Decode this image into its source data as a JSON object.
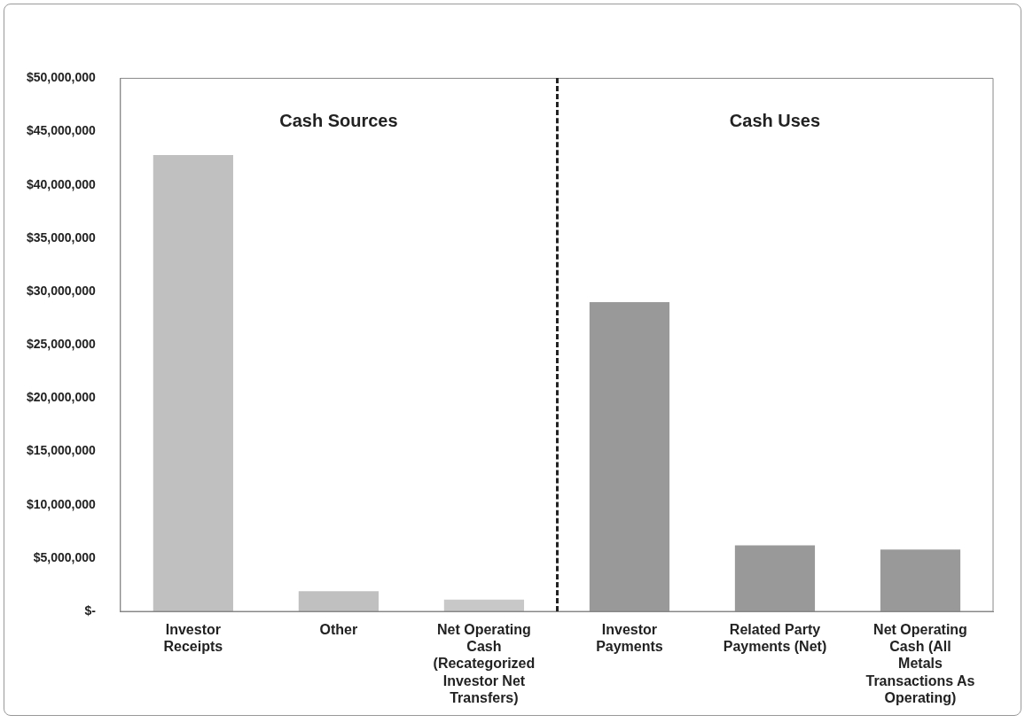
{
  "chart_data": {
    "type": "bar",
    "categories": [
      "Investor Receipts",
      "Other",
      "Net Operating Cash (Recategorized Investor Net Transfers)",
      "Investor Payments",
      "Related Party Payments (Net)",
      "Net Operating Cash (All Metals Transactions As Operating)"
    ],
    "values": [
      42800000,
      1900000,
      1100000,
      29000000,
      6200000,
      5800000
    ],
    "colors": [
      "#c0c0c0",
      "#c0c0c0",
      "#c8c8c8",
      "#999999",
      "#999999",
      "#999999"
    ],
    "ylim": [
      0,
      50000000
    ],
    "yticks": [
      {
        "value": 0,
        "label": "$-"
      },
      {
        "value": 5000000,
        "label": "$5,000,000"
      },
      {
        "value": 10000000,
        "label": "$10,000,000"
      },
      {
        "value": 15000000,
        "label": "$15,000,000"
      },
      {
        "value": 20000000,
        "label": "$20,000,000"
      },
      {
        "value": 25000000,
        "label": "$25,000,000"
      },
      {
        "value": 30000000,
        "label": "$30,000,000"
      },
      {
        "value": 35000000,
        "label": "$35,000,000"
      },
      {
        "value": 40000000,
        "label": "$40,000,000"
      },
      {
        "value": 45000000,
        "label": "$45,000,000"
      },
      {
        "value": 50000000,
        "label": "$50,000,000"
      }
    ],
    "annotations": [
      "Cash Sources",
      "Cash Uses"
    ],
    "grid": false,
    "legend": false
  }
}
